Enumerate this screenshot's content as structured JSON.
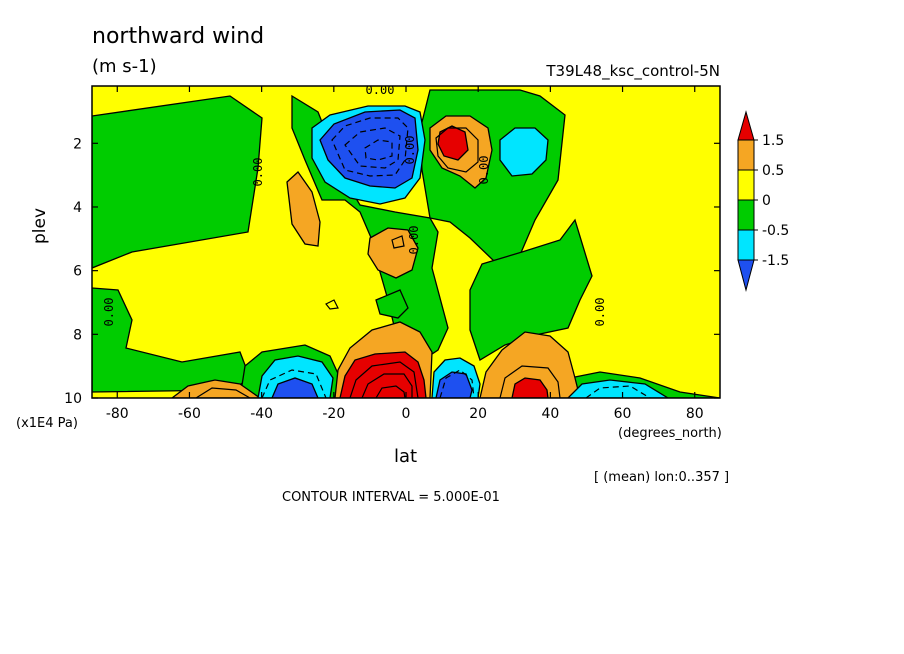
{
  "header": {
    "title": "northward wind",
    "units": "(m s-1)",
    "dataset": "T39L48_ksc_control-5N"
  },
  "footer": {
    "average_note": "[ (mean) lon:0..357 ]",
    "contour_interval": "CONTOUR INTERVAL = 5.000E-01"
  },
  "chart_data": {
    "type": "contour",
    "title": "northward wind",
    "units": "(m s-1)",
    "xlabel": "lat",
    "xunits": "(degrees_north)",
    "ylabel": "plev",
    "yunits": "(x1E4 Pa)",
    "xlim": [
      -87,
      87
    ],
    "ylim": [
      10,
      0.2
    ],
    "x_ticks": [
      -80,
      -60,
      -40,
      -20,
      0,
      20,
      40,
      60,
      80
    ],
    "x_tick_labels": [
      "-80",
      "-60",
      "-40",
      "-20",
      "0",
      "20",
      "40",
      "60",
      "80"
    ],
    "y_ticks": [
      2,
      4,
      6,
      8,
      10
    ],
    "y_tick_labels": [
      "2",
      "4",
      "6",
      "8",
      "10"
    ],
    "contour_interval": 0.5,
    "colorbar": {
      "labels": [
        "1.5",
        "0.5",
        "0",
        "-0.5",
        "-1.5"
      ],
      "colors": [
        "#e60000",
        "#f5a623",
        "#ffff00",
        "#00cc00",
        "#00e5ff",
        "#1e50f0"
      ]
    },
    "zero_contour_labels": [
      "0.00",
      "0.00",
      "0.00",
      "0.00",
      "0.00",
      "0.00",
      "0.00"
    ],
    "features": [
      {
        "name": "upper negative jet",
        "lat": -3,
        "plev": 2,
        "value": -2.5
      },
      {
        "name": "upper positive core",
        "lat": 12,
        "plev": 2,
        "value": 1.5
      },
      {
        "name": "upper cyan cell",
        "lat": 34,
        "plev": 2.2,
        "value": -0.8
      },
      {
        "name": "surface positive core",
        "lat": -5,
        "plev": 9.6,
        "value": 3.0
      },
      {
        "name": "surface negative south",
        "lat": -33,
        "plev": 9.6,
        "value": -1.5
      },
      {
        "name": "surface negative north",
        "lat": 18,
        "plev": 9.7,
        "value": -1.5
      },
      {
        "name": "surface positive north",
        "lat": 33,
        "plev": 9.7,
        "value": 2.0
      }
    ]
  },
  "colors": {
    "red": "#e60000",
    "orange": "#f5a623",
    "yellow": "#ffff00",
    "green": "#00cc00",
    "cyan": "#00e5ff",
    "blue": "#1e50f0"
  }
}
